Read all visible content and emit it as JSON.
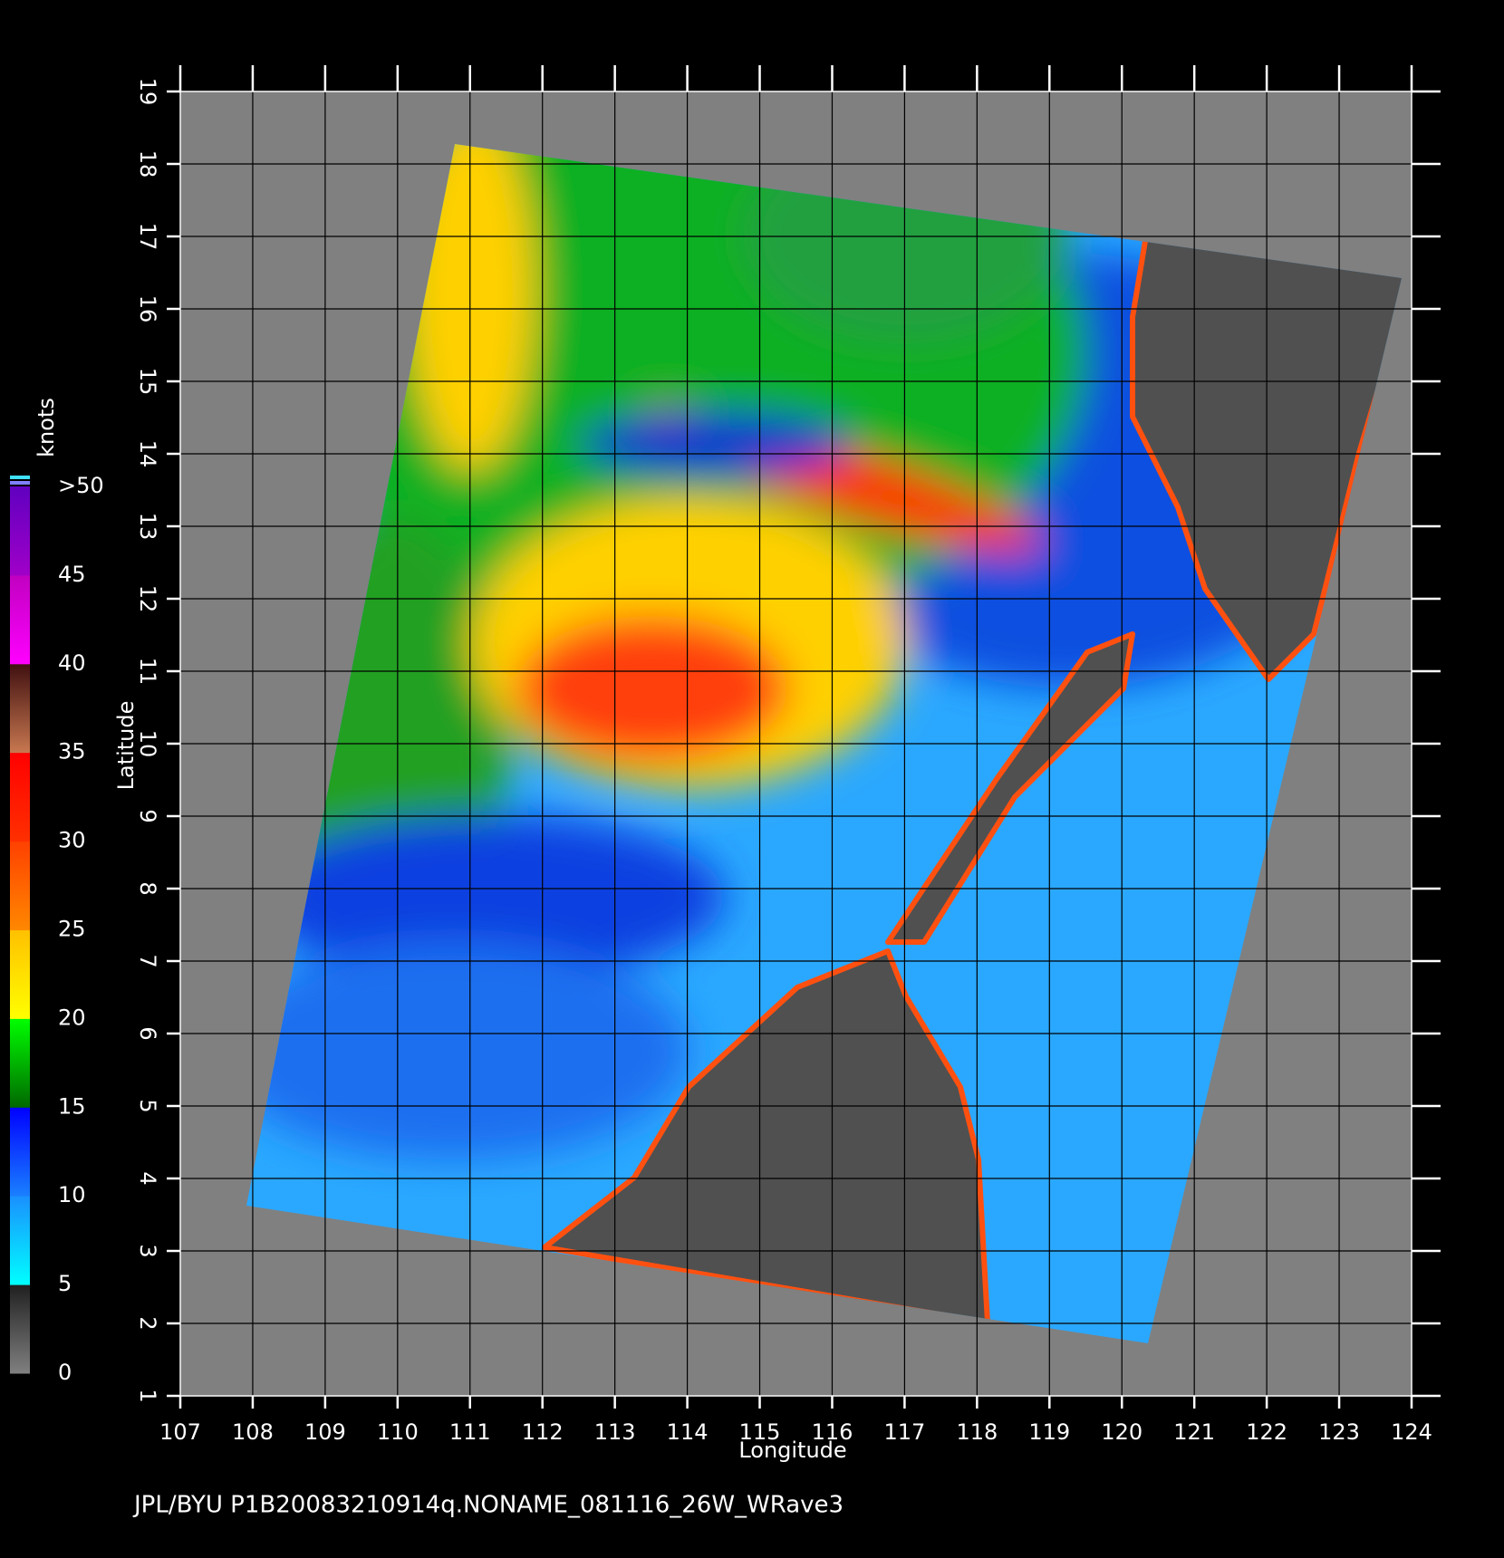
{
  "map": {
    "xlabel": "Longitude",
    "ylabel": "Latitude",
    "xlim": [
      107,
      124
    ],
    "ylim": [
      1,
      19
    ],
    "xticks": [
      107,
      108,
      109,
      110,
      111,
      112,
      113,
      114,
      115,
      116,
      117,
      118,
      119,
      120,
      121,
      122,
      123,
      124
    ],
    "yticks": [
      1,
      2,
      3,
      4,
      5,
      6,
      7,
      8,
      9,
      10,
      11,
      12,
      13,
      14,
      15,
      16,
      17,
      18,
      19
    ],
    "footer": "JPL/BYU  P1B20083210914q.NONAME_081116_26W_WRave3",
    "colorbar": {
      "title": "knots",
      "lim": [
        0,
        50
      ],
      "ticks": [
        0,
        5,
        10,
        15,
        20,
        25,
        30,
        35,
        40,
        45,
        {
          "value": 50,
          "label": ">50"
        }
      ],
      "colors": [
        [
          "#808080",
          "#202020"
        ],
        [
          "#00ffff",
          "#1a90ff"
        ],
        [
          "#1a80ff",
          "#0000ff"
        ],
        [
          "#006800",
          "#00ff00"
        ],
        [
          "#ffff00",
          "#ffc000"
        ],
        [
          "#ff8800",
          "#ff4000"
        ],
        [
          "#ff3000",
          "#ff0000"
        ],
        [
          "#c87850",
          "#401010"
        ],
        [
          "#ff00ff",
          "#c000c0"
        ],
        [
          "#a000c8",
          "#6000c0"
        ]
      ]
    }
  }
}
